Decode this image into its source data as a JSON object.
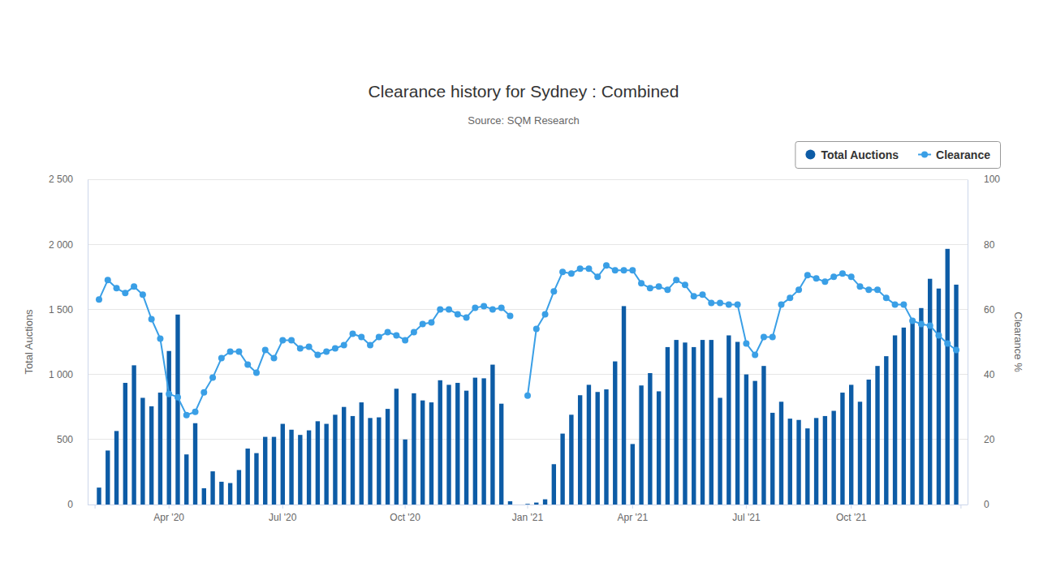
{
  "chart_data": {
    "type": "bar",
    "title": "Clearance history for Sydney : Combined",
    "subtitle": "Source: SQM Research",
    "y_label": "Total Auctions",
    "y2_label": "Clearance %",
    "categories": [
      null,
      null,
      null,
      null,
      null,
      null,
      null,
      null,
      "Apr '20",
      null,
      null,
      null,
      null,
      null,
      null,
      null,
      null,
      null,
      null,
      null,
      null,
      "Jul '20",
      null,
      null,
      null,
      null,
      null,
      null,
      null,
      null,
      null,
      null,
      null,
      null,
      null,
      "Oct '20",
      null,
      null,
      null,
      null,
      null,
      null,
      null,
      null,
      null,
      null,
      null,
      null,
      null,
      "Jan '21",
      null,
      null,
      null,
      null,
      null,
      null,
      null,
      null,
      null,
      null,
      null,
      "Apr '21",
      null,
      null,
      null,
      null,
      null,
      null,
      null,
      null,
      null,
      null,
      null,
      null,
      "Jul '21",
      null,
      null,
      null,
      null,
      null,
      null,
      null,
      null,
      null,
      null,
      null,
      "Oct '21",
      null,
      null,
      null,
      null,
      null,
      null,
      null,
      null,
      null,
      null,
      null,
      null
    ],
    "series": [
      {
        "name": "Total Auctions",
        "type": "bar",
        "color": "#0d5ca6",
        "values": [
          130,
          415,
          565,
          935,
          1070,
          820,
          755,
          860,
          1180,
          1460,
          385,
          625,
          125,
          255,
          175,
          165,
          265,
          430,
          395,
          520,
          520,
          620,
          575,
          535,
          570,
          640,
          620,
          690,
          750,
          680,
          785,
          665,
          670,
          735,
          890,
          500,
          855,
          800,
          785,
          955,
          920,
          935,
          875,
          975,
          970,
          1075,
          775,
          25,
          0,
          5,
          15,
          40,
          310,
          545,
          690,
          840,
          920,
          865,
          885,
          1100,
          1525,
          465,
          915,
          1010,
          870,
          1210,
          1265,
          1245,
          1210,
          1265,
          1265,
          820,
          1300,
          1250,
          1000,
          950,
          1065,
          705,
          790,
          660,
          650,
          585,
          665,
          680,
          720,
          860,
          920,
          790,
          960,
          1065,
          1140,
          1300,
          1360,
          1400,
          1510,
          1735,
          1660,
          1965,
          1690
        ]
      },
      {
        "name": "Clearance",
        "type": "line",
        "axis": "y2",
        "color": "#3a9fe6",
        "marker": "circle",
        "values": [
          63,
          69,
          66.5,
          65,
          67,
          64.5,
          57,
          51,
          34,
          33,
          27.5,
          28.5,
          34.5,
          39,
          45,
          47,
          47,
          43,
          40.5,
          47.5,
          45,
          50.5,
          50.5,
          48,
          48.5,
          46,
          47,
          48,
          49,
          52.5,
          51.5,
          49,
          51.5,
          53,
          52,
          50.5,
          53,
          55.5,
          56,
          60,
          60,
          58.5,
          57.5,
          60.5,
          61,
          60,
          60.5,
          58,
          null,
          33.5,
          54,
          58.5,
          65.5,
          71.5,
          71,
          72.5,
          72.5,
          70,
          73.5,
          72,
          72,
          72,
          68,
          66.5,
          67,
          66,
          69,
          67.5,
          64,
          64.5,
          62,
          62,
          61.5,
          61.5,
          49.5,
          46,
          51.5,
          51.5,
          61.5,
          63.5,
          66,
          70.5,
          69.5,
          68.5,
          70,
          71,
          70,
          67,
          66,
          66,
          63.5,
          61.5,
          61.5,
          56.5,
          55.5,
          55,
          52,
          49.5,
          47.5
        ]
      }
    ],
    "ylim": [
      0,
      2500
    ],
    "yticks": [
      0,
      500,
      {
        "value": 1000,
        "label": "1 000"
      },
      {
        "value": 1500,
        "label": "1 500"
      },
      {
        "value": 2000,
        "label": "2 000"
      },
      {
        "value": 2500,
        "label": "2 500"
      }
    ],
    "y2lim": [
      0,
      100
    ],
    "y2ticks": [
      0,
      20,
      40,
      60,
      80,
      100
    ],
    "grid": true,
    "legend": "top-right"
  }
}
